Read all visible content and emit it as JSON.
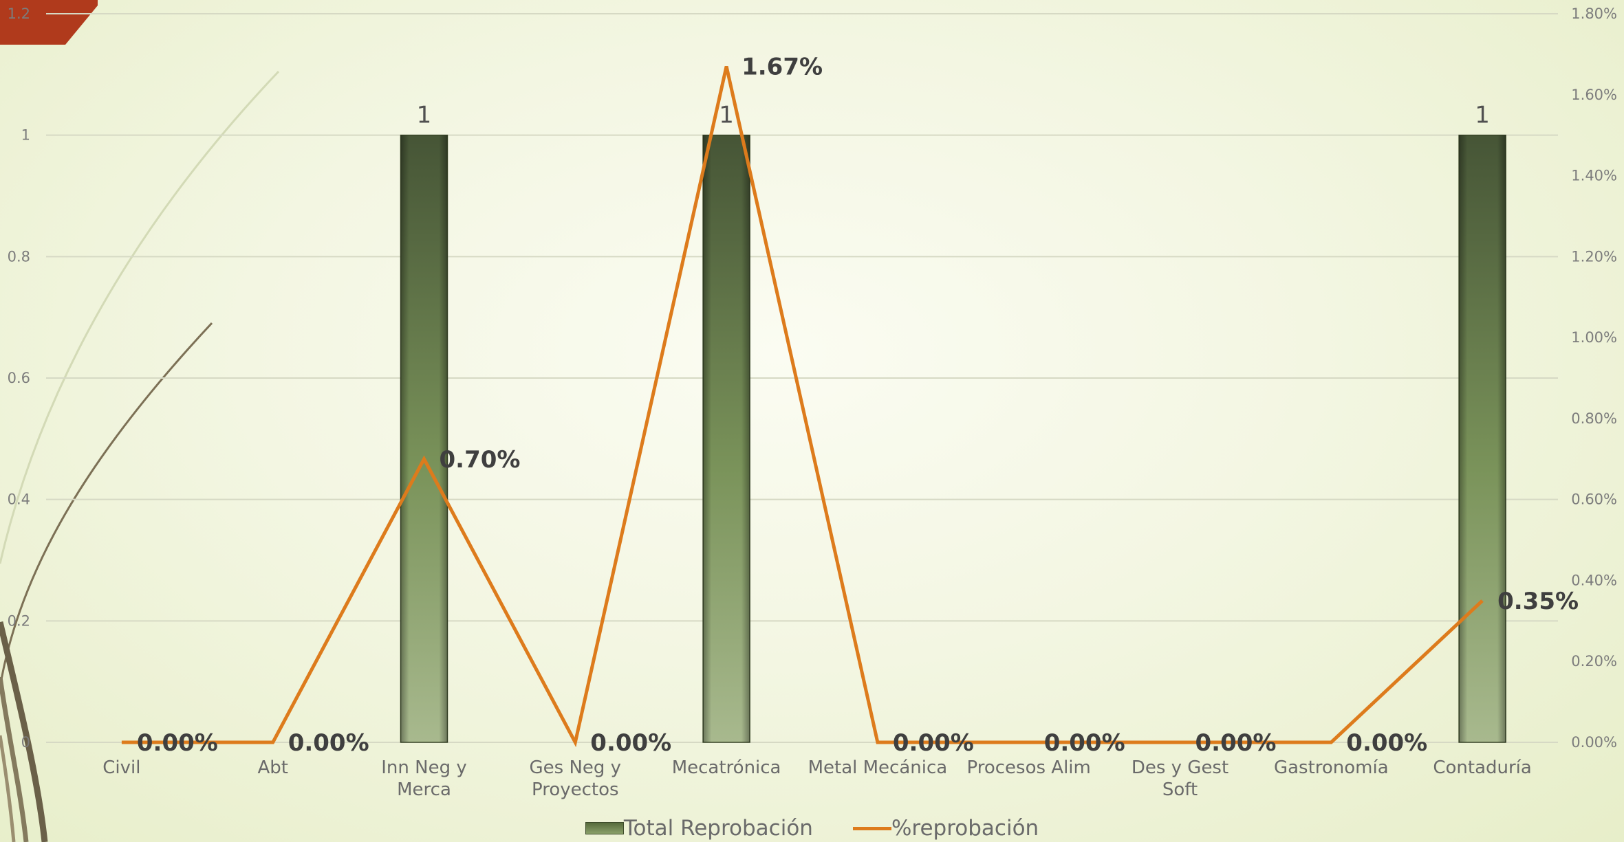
{
  "chart_data": {
    "type": "bar",
    "categories": [
      "Civil",
      "Abt",
      "Inn Neg y Merca",
      "Ges Neg y Proyectos",
      "Mecatrónica",
      "Metal Mecánica",
      "Procesos Alim",
      "Des y Gest Soft",
      "Gastronomía",
      "Contaduría"
    ],
    "series": [
      {
        "name": "Total Reprobación",
        "chart_type": "bar",
        "axis": "left",
        "values": [
          0,
          0,
          1,
          0,
          1,
          0,
          0,
          0,
          0,
          1
        ],
        "data_labels": [
          "",
          "",
          "1",
          "",
          "1",
          "",
          "",
          "",
          "",
          "1"
        ],
        "color": "#6b8049"
      },
      {
        "name": "%reprobación",
        "chart_type": "line",
        "axis": "right",
        "values": [
          0.0,
          0.0,
          0.7,
          0.0,
          1.67,
          0.0,
          0.0,
          0.0,
          0.0,
          0.35
        ],
        "data_labels": [
          "0.00%",
          "0.00%",
          "0.70%",
          "0.00%",
          "1.67%",
          "0.00%",
          "0.00%",
          "0.00%",
          "0.00%",
          "0.35%"
        ],
        "color": "#dd7b1c"
      }
    ],
    "y_left": {
      "ylim": [
        0,
        1.2
      ],
      "ticks": [
        "0",
        "0.2",
        "0.4",
        "0.6",
        "0.8",
        "1",
        "1.2"
      ]
    },
    "y_right": {
      "ylim": [
        0,
        1.8
      ],
      "unit": "percent",
      "ticks": [
        "0.00%",
        "0.20%",
        "0.40%",
        "0.60%",
        "0.80%",
        "1.00%",
        "1.20%",
        "1.40%",
        "1.60%",
        "1.80%"
      ]
    },
    "grid": true,
    "legend_position": "bottom"
  },
  "colors": {
    "bar": "#6b8049",
    "line": "#dd7b1c",
    "accent_tab": "#b03a1c"
  }
}
